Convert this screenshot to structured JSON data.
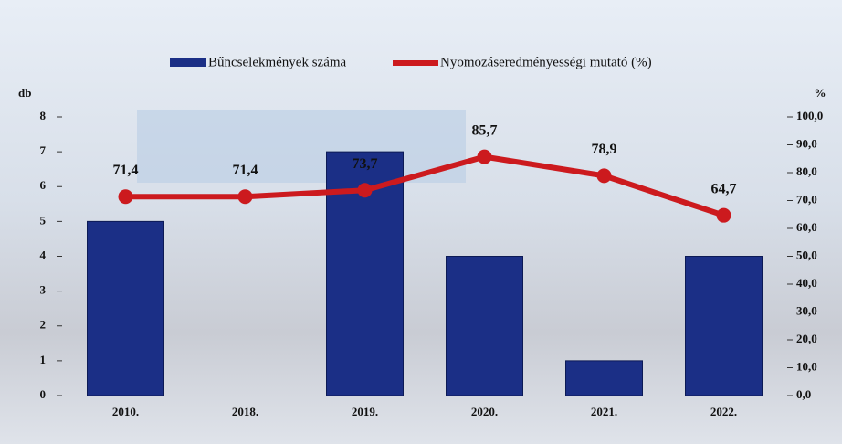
{
  "chart_data": {
    "type": "bar",
    "categories": [
      "2010.",
      "2018.",
      "2019.",
      "2020.",
      "2021.",
      "2022."
    ],
    "series": [
      {
        "name": "Bűncselekmények száma",
        "type": "bar",
        "color": "#1b2f86",
        "values": [
          5,
          0,
          7,
          4,
          1,
          4
        ]
      },
      {
        "name": "Nyomozáseredményességi mutató (%)",
        "type": "line",
        "axis": "y2",
        "color": "#cc1a1e",
        "values": [
          71.4,
          71.4,
          73.7,
          85.7,
          78.9,
          64.7
        ],
        "value_labels": [
          "71,4",
          "71,4",
          "73,7",
          "85,7",
          "78,9",
          "64,7"
        ]
      }
    ],
    "y_label": "db",
    "y2_label": "%",
    "ylim": [
      0,
      8
    ],
    "yticks": [
      0,
      1,
      2,
      3,
      4,
      5,
      6,
      7,
      8
    ],
    "y2lim": [
      0,
      100
    ],
    "y2ticks": [
      {
        "value": 0,
        "label": "0,0"
      },
      {
        "value": 10,
        "label": "10,0"
      },
      {
        "value": 20,
        "label": "20,0"
      },
      {
        "value": 30,
        "label": "30,0"
      },
      {
        "value": 40,
        "label": "40,0"
      },
      {
        "value": 50,
        "label": "50,0"
      },
      {
        "value": 60,
        "label": "60,0"
      },
      {
        "value": 70,
        "label": "70,0"
      },
      {
        "value": 80,
        "label": "80,0"
      },
      {
        "value": 90,
        "label": "90,0"
      },
      {
        "value": 100,
        "label": "100,0"
      }
    ],
    "legend": "top"
  }
}
